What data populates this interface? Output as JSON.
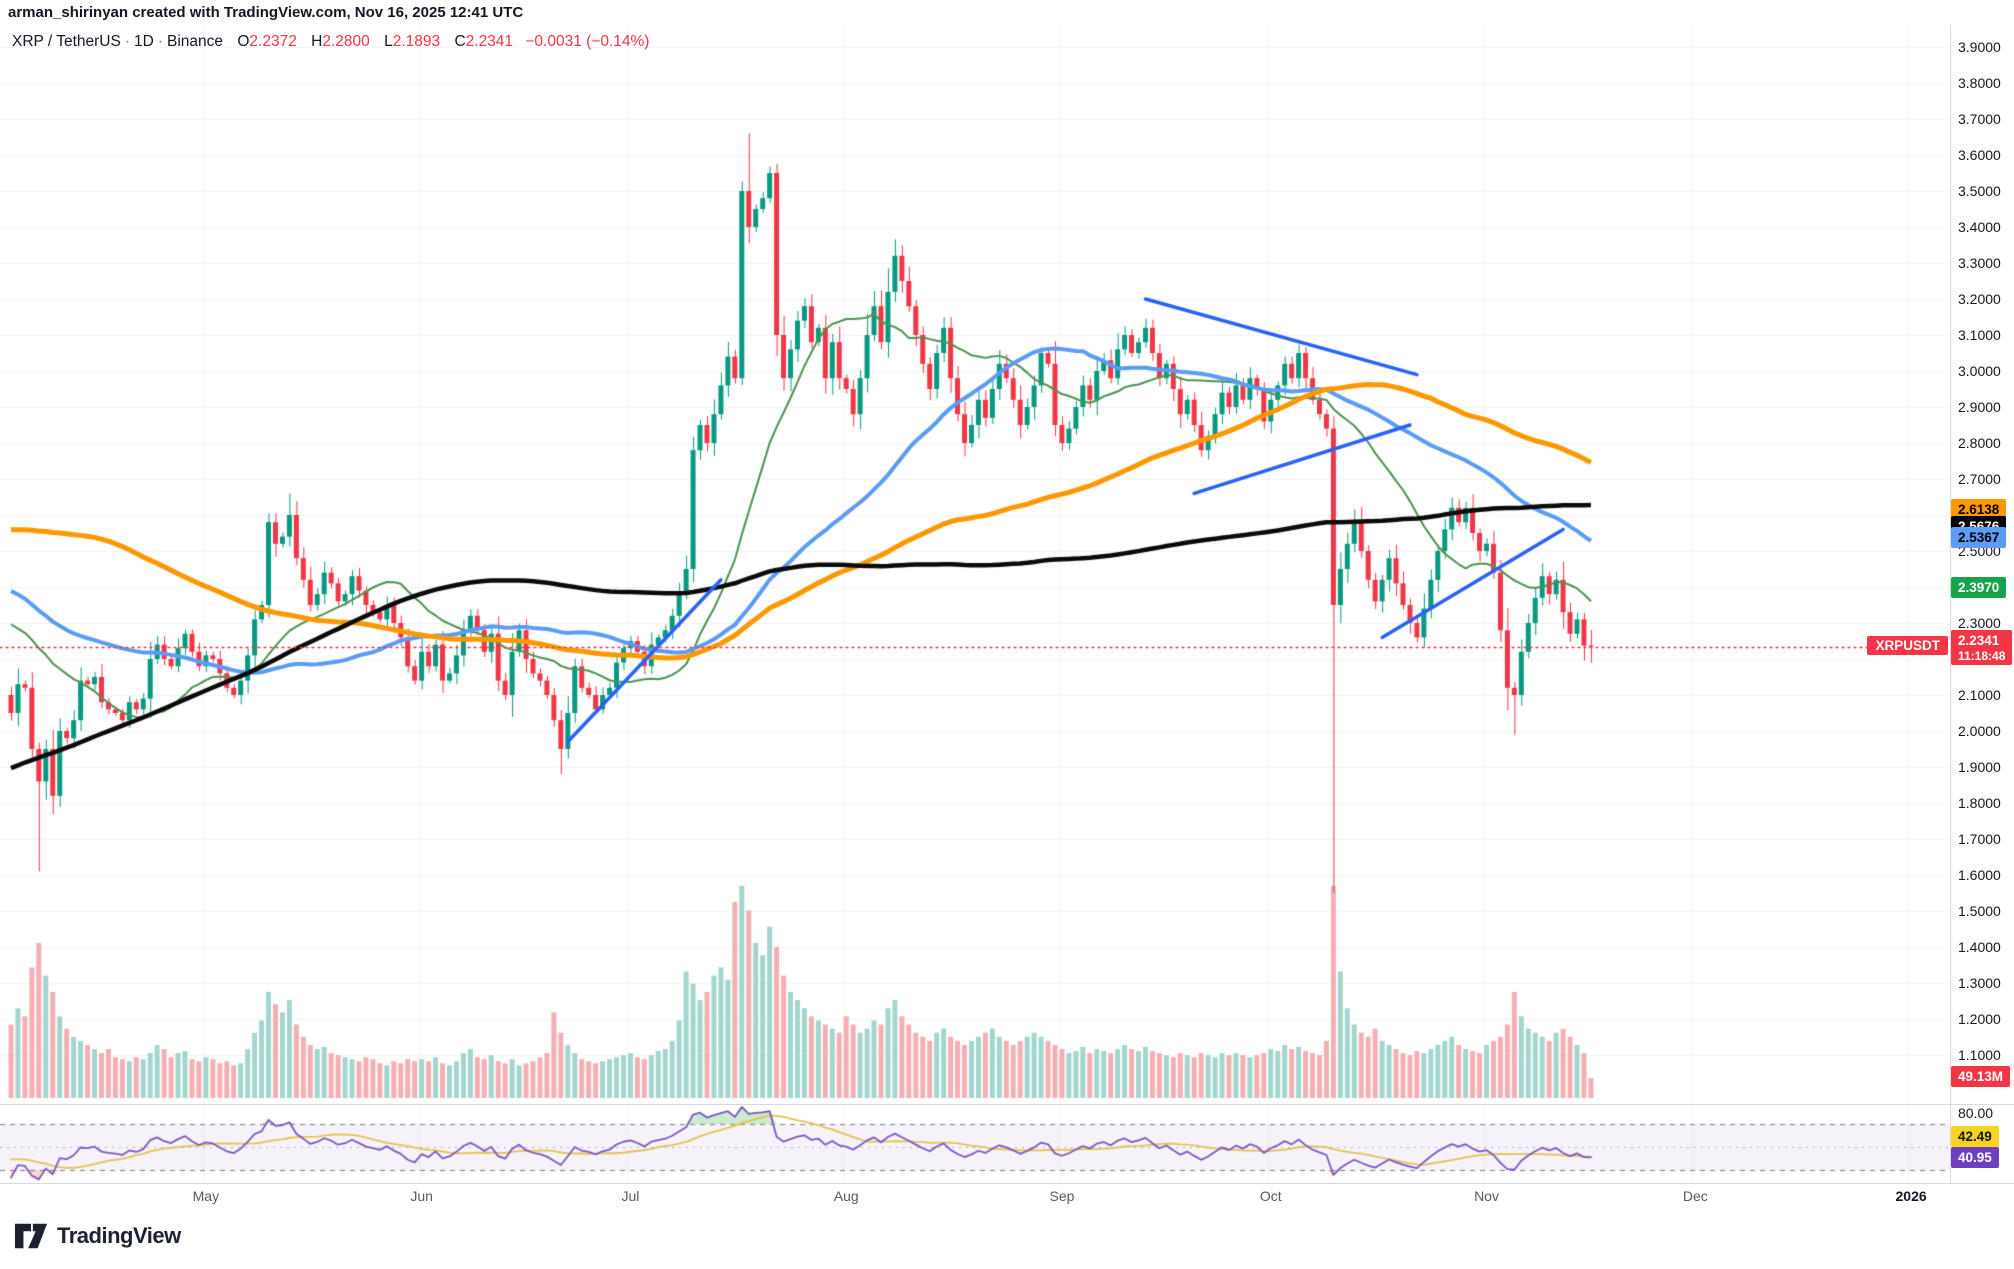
{
  "attribution": "arman_shirinyan created with TradingView.com, Nov 16, 2025 12:41 UTC",
  "header": {
    "symbol": "XRP / TetherUS",
    "interval": "1D",
    "exchange": "Binance",
    "open_label": "O",
    "open": "2.2372",
    "high_label": "H",
    "high": "2.2800",
    "low_label": "L",
    "low": "2.1893",
    "close_label": "C",
    "close": "2.2341",
    "change": "−0.0031 (−0.14%)"
  },
  "logo_text": "TradingView",
  "price_scale": {
    "min": 1.1,
    "max": 3.9,
    "step": 0.1,
    "decimals": 4
  },
  "labels": {
    "ma100": {
      "value": "2.6138",
      "price": 2.6138,
      "bg": "#ff9800",
      "fg": "#000000"
    },
    "ma200": {
      "value": "2.5676",
      "price": 2.5676,
      "bg": "#000000",
      "fg": "#ffffff"
    },
    "ma50": {
      "value": "2.5367",
      "price": 2.5367,
      "bg": "#5b9cf6",
      "fg": "#000000"
    },
    "ma20": {
      "value": "2.3970",
      "price": 2.397,
      "bg": "#16a34a",
      "fg": "#ffffff"
    },
    "last": {
      "tag": "XRPUSDT",
      "value": "2.2341",
      "countdown": "11:18:48",
      "price": 2.2341,
      "bg": "#f23645",
      "fg": "#ffffff"
    },
    "volume": {
      "value": "49.13M",
      "bg": "#f23645",
      "fg": "#ffffff"
    },
    "rsi_top": "80.00",
    "rsi_ma": {
      "value": "42.49",
      "rsi": 42.49,
      "bg": "#f8d321",
      "fg": "#131722"
    },
    "rsi": {
      "value": "40.95",
      "rsi": 40.95,
      "bg": "#6d3fc0",
      "fg": "#ffffff"
    }
  },
  "time_axis": {
    "months": [
      {
        "label": "May",
        "day": 28
      },
      {
        "label": "Jun",
        "day": 59
      },
      {
        "label": "Jul",
        "day": 89
      },
      {
        "label": "Aug",
        "day": 120
      },
      {
        "label": "Sep",
        "day": 151
      },
      {
        "label": "Oct",
        "day": 181
      },
      {
        "label": "Nov",
        "day": 212
      },
      {
        "label": "Dec",
        "day": 242
      },
      {
        "label": "2026",
        "day": 273,
        "year": true
      }
    ]
  },
  "colors": {
    "up": "#089981",
    "down": "#f23645",
    "vol_up": "#a3d6ce",
    "vol_down": "#f5afb4",
    "ma20": "#4e9350",
    "ma50": "#5b9cf6",
    "ma100": "#ff9800",
    "ma200": "#0a0a0a",
    "trendline": "#2962ff",
    "rsi": "#7e57c2",
    "rsi_ma": "#e5c44d",
    "rsi_band_fill": "rgba(126,87,194,0.08)",
    "rsi_over_fill": "rgba(76,175,80,0.28)",
    "rsi_under_fill": "rgba(242,54,69,0.22)",
    "grid": "#f0f3fa",
    "dashed": "#8b8f9b",
    "price_line": "#f23645"
  },
  "chart_data": {
    "type": "candlestick+volume+rsi",
    "title": "XRP / TetherUS, 1D, Binance",
    "start_date": "2025-04-03",
    "bars": 228,
    "ylim": [
      1.1,
      3.9
    ],
    "closes": [
      2.05,
      2.13,
      2.12,
      1.95,
      1.86,
      1.95,
      1.82,
      2.0,
      1.98,
      2.03,
      2.14,
      2.13,
      2.15,
      2.08,
      2.06,
      2.05,
      2.03,
      2.08,
      2.06,
      2.09,
      2.2,
      2.24,
      2.2,
      2.18,
      2.23,
      2.27,
      2.22,
      2.18,
      2.21,
      2.2,
      2.16,
      2.12,
      2.1,
      2.14,
      2.21,
      2.31,
      2.35,
      2.58,
      2.52,
      2.54,
      2.6,
      2.48,
      2.42,
      2.35,
      2.38,
      2.44,
      2.41,
      2.36,
      2.38,
      2.43,
      2.39,
      2.35,
      2.33,
      2.31,
      2.35,
      2.3,
      2.26,
      2.18,
      2.14,
      2.22,
      2.18,
      2.24,
      2.14,
      2.16,
      2.21,
      2.28,
      2.32,
      2.28,
      2.22,
      2.27,
      2.14,
      2.1,
      2.22,
      2.28,
      2.2,
      2.16,
      2.14,
      2.1,
      2.03,
      1.95,
      2.05,
      2.18,
      2.12,
      2.1,
      2.06,
      2.1,
      2.12,
      2.19,
      2.23,
      2.25,
      2.22,
      2.18,
      2.24,
      2.26,
      2.28,
      2.32,
      2.38,
      2.45,
      2.78,
      2.85,
      2.8,
      2.88,
      2.96,
      3.04,
      2.98,
      3.5,
      3.4,
      3.45,
      3.48,
      3.55,
      3.1,
      2.98,
      3.06,
      3.14,
      3.18,
      3.08,
      3.12,
      2.98,
      3.08,
      2.98,
      2.95,
      2.88,
      2.98,
      3.1,
      3.18,
      3.08,
      3.22,
      3.32,
      3.25,
      3.18,
      3.1,
      3.02,
      2.95,
      3.05,
      3.12,
      2.98,
      2.88,
      2.8,
      2.85,
      2.92,
      2.87,
      2.95,
      3.02,
      2.98,
      2.92,
      2.85,
      2.9,
      2.96,
      3.05,
      3.02,
      2.85,
      2.8,
      2.84,
      2.9,
      2.96,
      2.92,
      3.0,
      3.03,
      2.98,
      3.06,
      3.1,
      3.05,
      3.08,
      3.12,
      3.05,
      2.98,
      3.02,
      2.95,
      2.88,
      2.92,
      2.85,
      2.78,
      2.82,
      2.88,
      2.94,
      2.9,
      2.96,
      2.92,
      2.98,
      2.95,
      2.86,
      2.92,
      2.96,
      3.02,
      2.98,
      3.05,
      2.98,
      2.92,
      2.88,
      2.84,
      2.35,
      2.45,
      2.52,
      2.58,
      2.5,
      2.42,
      2.36,
      2.42,
      2.48,
      2.41,
      2.35,
      2.3,
      2.26,
      2.34,
      2.42,
      2.5,
      2.56,
      2.62,
      2.58,
      2.62,
      2.55,
      2.5,
      2.52,
      2.44,
      2.28,
      2.12,
      2.1,
      2.22,
      2.3,
      2.37,
      2.43,
      2.38,
      2.42,
      2.33,
      2.27,
      2.31,
      2.2372,
      2.2341
    ],
    "volumes_m": [
      180,
      220,
      200,
      320,
      380,
      300,
      260,
      200,
      170,
      150,
      140,
      130,
      120,
      110,
      120,
      100,
      95,
      90,
      100,
      95,
      110,
      130,
      120,
      100,
      110,
      115,
      95,
      90,
      100,
      95,
      85,
      90,
      80,
      85,
      120,
      160,
      190,
      260,
      230,
      210,
      240,
      180,
      150,
      130,
      120,
      125,
      110,
      105,
      100,
      95,
      90,
      100,
      95,
      85,
      80,
      90,
      85,
      95,
      90,
      95,
      90,
      100,
      85,
      80,
      90,
      110,
      120,
      100,
      95,
      105,
      90,
      85,
      95,
      80,
      85,
      90,
      100,
      110,
      210,
      160,
      130,
      110,
      95,
      90,
      85,
      90,
      95,
      100,
      105,
      110,
      100,
      95,
      105,
      115,
      120,
      140,
      190,
      310,
      280,
      240,
      260,
      300,
      320,
      290,
      480,
      520,
      460,
      380,
      350,
      420,
      370,
      300,
      260,
      240,
      220,
      200,
      190,
      180,
      170,
      160,
      200,
      180,
      160,
      170,
      190,
      180,
      220,
      240,
      200,
      180,
      160,
      150,
      140,
      160,
      170,
      150,
      140,
      130,
      140,
      150,
      160,
      170,
      150,
      140,
      130,
      140,
      150,
      160,
      150,
      140,
      130,
      120,
      110,
      115,
      125,
      110,
      120,
      115,
      110,
      120,
      130,
      120,
      115,
      125,
      115,
      110,
      105,
      100,
      110,
      105,
      100,
      110,
      105,
      100,
      110,
      105,
      110,
      105,
      100,
      105,
      110,
      120,
      115,
      130,
      120,
      125,
      115,
      110,
      105,
      140,
      520,
      310,
      220,
      180,
      160,
      150,
      170,
      140,
      130,
      120,
      110,
      105,
      115,
      110,
      120,
      130,
      140,
      150,
      130,
      120,
      115,
      110,
      130,
      140,
      150,
      180,
      260,
      200,
      170,
      160,
      150,
      140,
      160,
      170,
      150,
      130,
      110,
      49
    ],
    "wick_overrides": {
      "4": {
        "low": 1.61
      },
      "40": {
        "high": 2.66
      },
      "79": {
        "low": 1.88
      },
      "106": {
        "high": 3.66
      },
      "190": {
        "low": 1.55
      },
      "216": {
        "low": 1.99
      },
      "227": {
        "high": 2.28,
        "low": 2.1893
      }
    },
    "pre_history_anchors": [
      [
        0,
        0.56
      ],
      [
        40,
        0.54
      ],
      [
        55,
        0.62
      ],
      [
        62,
        1.2
      ],
      [
        68,
        1.9
      ],
      [
        75,
        2.45
      ],
      [
        82,
        2.75
      ],
      [
        88,
        2.3
      ],
      [
        95,
        2.4
      ],
      [
        100,
        2.12
      ],
      [
        106,
        2.08
      ],
      [
        112,
        2.45
      ],
      [
        118,
        3.05
      ],
      [
        124,
        3.2
      ],
      [
        130,
        2.95
      ],
      [
        136,
        3.05
      ],
      [
        142,
        2.8
      ],
      [
        148,
        2.45
      ],
      [
        153,
        2.75
      ],
      [
        158,
        2.55
      ],
      [
        164,
        2.35
      ],
      [
        170,
        2.22
      ],
      [
        176,
        2.5
      ],
      [
        182,
        2.35
      ],
      [
        188,
        2.28
      ],
      [
        193,
        2.42
      ],
      [
        198,
        2.18
      ],
      [
        199,
        2.1
      ]
    ],
    "moving_averages": [
      {
        "period": 20,
        "key": "ma20",
        "width": 2
      },
      {
        "period": 50,
        "key": "ma50",
        "width": 4
      },
      {
        "period": 100,
        "key": "ma100",
        "width": 5
      },
      {
        "period": 200,
        "key": "ma200",
        "width": 4.5
      }
    ],
    "trendlines": [
      {
        "d1": 163,
        "p1": 3.2,
        "d2": 202,
        "p2": 2.99
      },
      {
        "d1": 170,
        "p1": 2.66,
        "d2": 201,
        "p2": 2.85
      },
      {
        "d1": 80,
        "p1": 1.97,
        "d2": 102,
        "p2": 2.42
      },
      {
        "d1": 197,
        "p1": 2.26,
        "d2": 223,
        "p2": 2.56
      }
    ],
    "last_price": 2.2341,
    "rsi_settings": {
      "period": 14,
      "upper": 70,
      "mid": 50,
      "lower": 30,
      "scale_label": 80
    }
  }
}
